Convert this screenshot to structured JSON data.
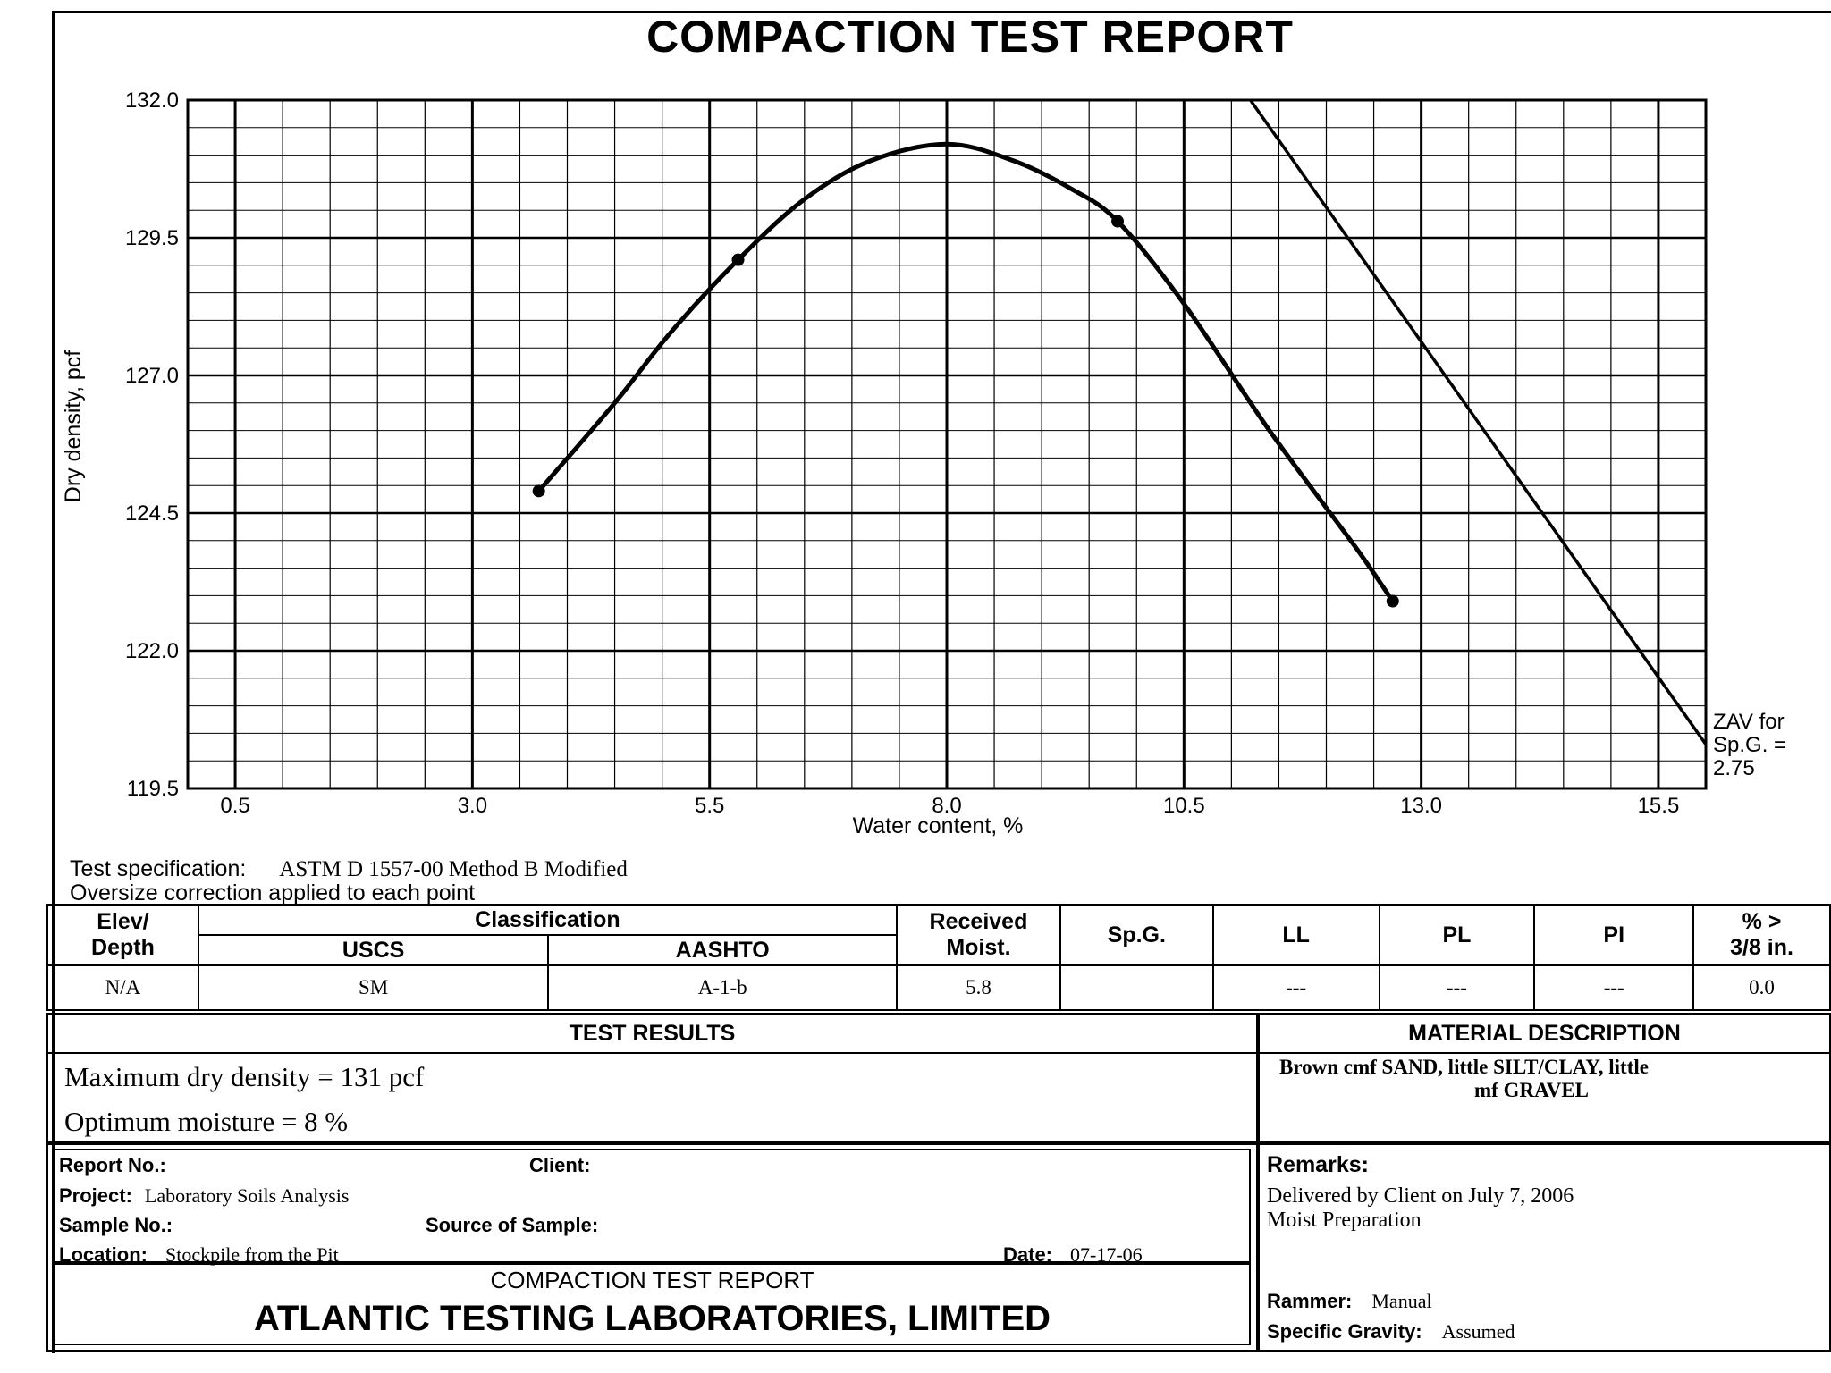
{
  "report_title": "COMPACTION TEST REPORT",
  "chart_data": {
    "type": "line",
    "xlabel": "Water content,  %",
    "ylabel": "Dry density, pcf",
    "xlim": [
      0.0,
      16.0
    ],
    "ylim": [
      119.5,
      132.0
    ],
    "x_ticks": [
      "0.5",
      "3.0",
      "5.5",
      "8.0",
      "10.5",
      "13.0",
      "15.5"
    ],
    "y_ticks": [
      "132.0",
      "129.5",
      "127.0",
      "124.5",
      "122.0",
      "119.5"
    ],
    "grid": true,
    "series": [
      {
        "name": "",
        "style": "curve",
        "x": [
          3.7,
          4.5,
          5.1,
          5.8,
          6.5,
          7.2,
          8.0,
          8.7,
          9.3,
          9.8,
          10.5,
          11.4,
          12.3,
          12.7
        ],
        "y": [
          124.9,
          126.5,
          127.8,
          129.1,
          130.2,
          130.9,
          131.2,
          130.9,
          130.4,
          129.8,
          128.3,
          126.0,
          123.9,
          122.9
        ]
      }
    ],
    "points": {
      "x": [
        3.7,
        5.8,
        9.8,
        12.7
      ],
      "y": [
        124.9,
        129.1,
        129.8,
        122.9
      ]
    },
    "zav_line": {
      "x": [
        11.2,
        16.0
      ],
      "y": [
        132.0,
        120.3
      ],
      "label": [
        "ZAV for",
        "Sp.G. =",
        "2.75"
      ]
    }
  },
  "test_spec": {
    "label": "Test specification:",
    "value": "ASTM D 1557-00 Method B Modified",
    "note": "Oversize correction applied to each point"
  },
  "classification_table": {
    "headers": {
      "elev_depth": [
        "Elev/",
        "Depth"
      ],
      "classification": "Classification",
      "uscs": "USCS",
      "aashto": "AASHTO",
      "received_moist": [
        "Received",
        "Moist."
      ],
      "spg": "Sp.G.",
      "ll": "LL",
      "pl": "PL",
      "pi": "PI",
      "oversize": [
        "% >",
        "3/8 in."
      ]
    },
    "row": {
      "elev_depth": "N/A",
      "uscs": "SM",
      "aashto": "A-1-b",
      "received_moist": "5.8",
      "spg": "",
      "ll": "---",
      "pl": "---",
      "pi": "---",
      "oversize": "0.0"
    }
  },
  "test_results": {
    "heading": "TEST RESULTS",
    "max_dry_density": "Maximum dry density = 131 pcf",
    "optimum_moisture": "Optimum moisture = 8 %"
  },
  "material_description": {
    "heading": "MATERIAL DESCRIPTION",
    "line1": "Brown cmf SAND, little SILT/CLAY, little",
    "line2": "mf GRAVEL"
  },
  "report_info": {
    "report_no_label": "Report No.:",
    "client_label": "Client:",
    "project_label": "Project:",
    "project_value": "Laboratory Soils Analysis",
    "sample_no_label": "Sample No.:",
    "source_label": "Source of Sample:",
    "location_label": "Location:",
    "location_value": "Stockpile from the Pit",
    "date_label": "Date:",
    "date_value": "07-17-06"
  },
  "footer": {
    "subtitle": "COMPACTION TEST REPORT",
    "company": "ATLANTIC TESTING LABORATORIES, LIMITED"
  },
  "remarks": {
    "label": "Remarks:",
    "line1": "Delivered by Client on July 7, 2006",
    "line2": "Moist Preparation",
    "rammer_label": "Rammer:",
    "rammer_value": "Manual",
    "specific_gravity_label": "Specific Gravity:",
    "specific_gravity_value": "Assumed"
  }
}
